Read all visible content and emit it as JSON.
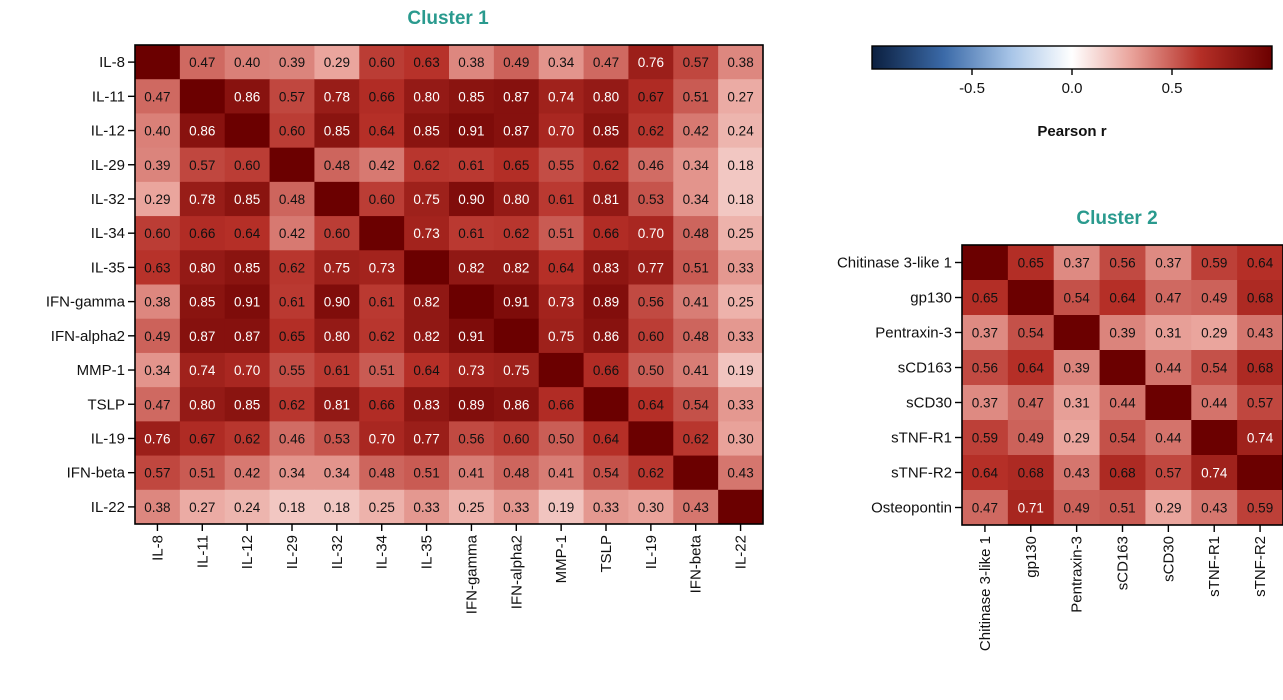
{
  "colors": {
    "title": "#2a9a8e",
    "diagonal": "#6b0000",
    "cmap_low": "#0b1f3f",
    "cmap_mid": "#ffffff",
    "cmap_high": "#6b0000",
    "text_dark_bg": "#ffffff",
    "text_light_bg": "#111111"
  },
  "colorbar": {
    "label": "Pearson r",
    "range": [
      -1,
      1
    ],
    "ticks": [
      -0.5,
      0.0,
      0.5
    ],
    "tick_labels": [
      "-0.5",
      "0.0",
      "0.5"
    ]
  },
  "chart_data": [
    {
      "type": "heatmap",
      "title": "Cluster 1",
      "labels": [
        "IL-8",
        "IL-11",
        "IL-12",
        "IL-29",
        "IL-32",
        "IL-34",
        "IL-35",
        "IFN-gamma",
        "IFN-alpha2",
        "MMP-1",
        "TSLP",
        "IL-19",
        "IFN-beta",
        "IL-22"
      ],
      "values": [
        [
          null,
          0.47,
          0.4,
          0.39,
          0.29,
          0.6,
          0.63,
          0.38,
          0.49,
          0.34,
          0.47,
          0.76,
          0.57,
          0.38
        ],
        [
          0.47,
          null,
          0.86,
          0.57,
          0.78,
          0.66,
          0.8,
          0.85,
          0.87,
          0.74,
          0.8,
          0.67,
          0.51,
          0.27
        ],
        [
          0.4,
          0.86,
          null,
          0.6,
          0.85,
          0.64,
          0.85,
          0.91,
          0.87,
          0.7,
          0.85,
          0.62,
          0.42,
          0.24
        ],
        [
          0.39,
          0.57,
          0.6,
          null,
          0.48,
          0.42,
          0.62,
          0.61,
          0.65,
          0.55,
          0.62,
          0.46,
          0.34,
          0.18
        ],
        [
          0.29,
          0.78,
          0.85,
          0.48,
          null,
          0.6,
          0.75,
          0.9,
          0.8,
          0.61,
          0.81,
          0.53,
          0.34,
          0.18
        ],
        [
          0.6,
          0.66,
          0.64,
          0.42,
          0.6,
          null,
          0.73,
          0.61,
          0.62,
          0.51,
          0.66,
          0.7,
          0.48,
          0.25
        ],
        [
          0.63,
          0.8,
          0.85,
          0.62,
          0.75,
          0.73,
          null,
          0.82,
          0.82,
          0.64,
          0.83,
          0.77,
          0.51,
          0.33
        ],
        [
          0.38,
          0.85,
          0.91,
          0.61,
          0.9,
          0.61,
          0.82,
          null,
          0.91,
          0.73,
          0.89,
          0.56,
          0.41,
          0.25
        ],
        [
          0.49,
          0.87,
          0.87,
          0.65,
          0.8,
          0.62,
          0.82,
          0.91,
          null,
          0.75,
          0.86,
          0.6,
          0.48,
          0.33
        ],
        [
          0.34,
          0.74,
          0.7,
          0.55,
          0.61,
          0.51,
          0.64,
          0.73,
          0.75,
          null,
          0.66,
          0.5,
          0.41,
          0.19
        ],
        [
          0.47,
          0.8,
          0.85,
          0.62,
          0.81,
          0.66,
          0.83,
          0.89,
          0.86,
          0.66,
          null,
          0.64,
          0.54,
          0.33
        ],
        [
          0.76,
          0.67,
          0.62,
          0.46,
          0.53,
          0.7,
          0.77,
          0.56,
          0.6,
          0.5,
          0.64,
          null,
          0.62,
          0.3
        ],
        [
          0.57,
          0.51,
          0.42,
          0.34,
          0.34,
          0.48,
          0.51,
          0.41,
          0.48,
          0.41,
          0.54,
          0.62,
          null,
          0.43
        ],
        [
          0.38,
          0.27,
          0.24,
          0.18,
          0.18,
          0.25,
          0.33,
          0.25,
          0.33,
          0.19,
          0.33,
          0.3,
          0.43,
          null
        ]
      ],
      "diagonal": 1.0
    },
    {
      "type": "heatmap",
      "title": "Cluster 2",
      "row_labels": [
        "Chitinase 3-like 1",
        "gp130",
        "Pentraxin-3",
        "sCD163",
        "sCD30",
        "sTNF-R1",
        "sTNF-R2",
        "Osteopontin"
      ],
      "col_labels": [
        "Chitinase 3-like 1",
        "gp130",
        "Pentraxin-3",
        "sCD163",
        "sCD30",
        "sTNF-R1",
        "sTNF-R2"
      ],
      "values": [
        [
          null,
          0.65,
          0.37,
          0.56,
          0.37,
          0.59,
          0.64
        ],
        [
          0.65,
          null,
          0.54,
          0.64,
          0.47,
          0.49,
          0.68
        ],
        [
          0.37,
          0.54,
          null,
          0.39,
          0.31,
          0.29,
          0.43
        ],
        [
          0.56,
          0.64,
          0.39,
          null,
          0.44,
          0.54,
          0.68
        ],
        [
          0.37,
          0.47,
          0.31,
          0.44,
          null,
          0.44,
          0.57
        ],
        [
          0.59,
          0.49,
          0.29,
          0.54,
          0.44,
          null,
          0.74
        ],
        [
          0.64,
          0.68,
          0.43,
          0.68,
          0.57,
          0.74,
          null
        ],
        [
          0.47,
          0.71,
          0.49,
          0.51,
          0.29,
          0.43,
          0.59
        ]
      ],
      "diagonal": 1.0
    }
  ]
}
